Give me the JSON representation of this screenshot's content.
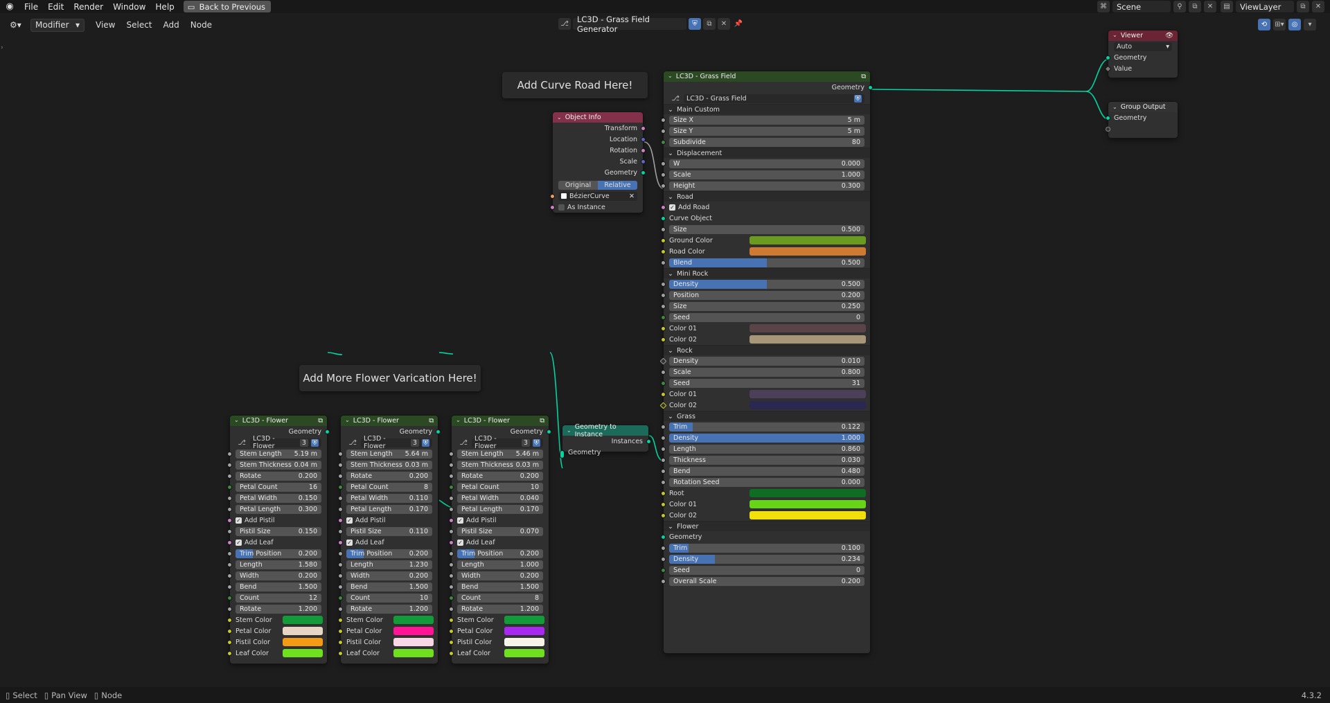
{
  "topbar": {
    "menu": [
      "File",
      "Edit",
      "Render",
      "Window",
      "Help"
    ],
    "back_button": "Back to Previous",
    "scene": "Scene",
    "view_layer": "ViewLayer"
  },
  "header": {
    "editor_mode": "Modifier",
    "menu": [
      "View",
      "Select",
      "Add",
      "Node"
    ],
    "node_group": "LC3D - Grass Field Generator"
  },
  "frames": {
    "curve": "Add Curve Road Here!",
    "flower": "Add More Flower Varication Here!"
  },
  "object_info": {
    "title": "Object Info",
    "outputs": [
      "Transform",
      "Location",
      "Rotation",
      "Scale",
      "Geometry"
    ],
    "mode_original": "Original",
    "mode_relative": "Relative",
    "object": "BézierCurve",
    "as_instance": "As Instance"
  },
  "viewer": {
    "title": "Viewer",
    "domain": "Auto",
    "inputs": [
      "Geometry",
      "Value"
    ]
  },
  "group_output": {
    "title": "Group Output",
    "inputs": [
      "Geometry"
    ]
  },
  "geo_to_instance": {
    "title": "Geometry to Instance",
    "output": "Instances",
    "input": "Geometry"
  },
  "grass_field": {
    "title": "LC3D - Grass Field",
    "output": "Geometry",
    "group": "LC3D - Grass Field",
    "main_custom": {
      "title": "Main Custom",
      "fields": [
        {
          "label": "Size X",
          "value": "5 m"
        },
        {
          "label": "Size Y",
          "value": "5 m"
        },
        {
          "label": "Subdivide",
          "value": "80"
        }
      ]
    },
    "displacement": {
      "title": "Displacement",
      "fields": [
        {
          "label": "W",
          "value": "0.000"
        },
        {
          "label": "Scale",
          "value": "1.000"
        },
        {
          "label": "Height",
          "value": "0.300"
        }
      ]
    },
    "road": {
      "title": "Road",
      "add_road": "Add Road",
      "curve_object": "Curve Object",
      "size_label": "Size",
      "size_value": "0.500",
      "ground_color": "Ground Color",
      "road_color": "Road Color",
      "blend_label": "Blend",
      "blend_value": "0.500"
    },
    "mini_rock": {
      "title": "Mini Rock",
      "fields": [
        {
          "label": "Density",
          "value": "0.500"
        },
        {
          "label": "Position",
          "value": "0.200"
        },
        {
          "label": "Size",
          "value": "0.250"
        },
        {
          "label": "Seed",
          "value": "0"
        }
      ],
      "color01": "Color 01",
      "color02": "Color 02"
    },
    "rock": {
      "title": "Rock",
      "fields": [
        {
          "label": "Density",
          "value": "0.010"
        },
        {
          "label": "Scale",
          "value": "0.800"
        },
        {
          "label": "Seed",
          "value": "31"
        }
      ],
      "color01": "Color 01",
      "color02": "Color 02"
    },
    "grass": {
      "title": "Grass",
      "fields": [
        {
          "label": "Trim",
          "value": "0.122"
        },
        {
          "label": "Density",
          "value": "1.000"
        },
        {
          "label": "Length",
          "value": "0.860"
        },
        {
          "label": "Thickness",
          "value": "0.030"
        },
        {
          "label": "Bend",
          "value": "0.480"
        },
        {
          "label": "Rotation Seed",
          "value": "0.000"
        }
      ],
      "root": "Root",
      "color01": "Color 01",
      "color02": "Color 02"
    },
    "flower": {
      "title": "Flower",
      "geometry": "Geometry",
      "fields": [
        {
          "label": "Trim",
          "value": "0.100"
        },
        {
          "label": "Density",
          "value": "0.234"
        },
        {
          "label": "Seed",
          "value": "0"
        },
        {
          "label": "Overall Scale",
          "value": "0.200"
        }
      ]
    }
  },
  "flowers": [
    {
      "title": "LC3D - Flower",
      "output": "Geometry",
      "group": "LC3D - Flower",
      "users": "3",
      "stem_length": "5.19 m",
      "stem_thickness": "0.04 m",
      "rotate": "0.200",
      "petal_count": "16",
      "petal_width": "0.150",
      "petal_length": "0.300",
      "add_pistil": "Add Pistil",
      "pistil_size": "0.150",
      "add_leaf": "Add Leaf",
      "trim_position": "0.200",
      "length": "1.580",
      "width": "0.200",
      "bend": "1.500",
      "count": "12",
      "rotate2": "1.200"
    },
    {
      "title": "LC3D - Flower",
      "output": "Geometry",
      "group": "LC3D - Flower",
      "users": "3",
      "stem_length": "5.64 m",
      "stem_thickness": "0.03 m",
      "rotate": "0.200",
      "petal_count": "8",
      "petal_width": "0.110",
      "petal_length": "0.170",
      "add_pistil": "Add Pistil",
      "pistil_size": "0.110",
      "add_leaf": "Add Leaf",
      "trim_position": "0.200",
      "length": "1.230",
      "width": "0.200",
      "bend": "1.500",
      "count": "10",
      "rotate2": "1.200"
    },
    {
      "title": "LC3D - Flower",
      "output": "Geometry",
      "group": "LC3D - Flower",
      "users": "3",
      "stem_length": "5.46 m",
      "stem_thickness": "0.03 m",
      "rotate": "0.200",
      "petal_count": "10",
      "petal_width": "0.040",
      "petal_length": "0.170",
      "add_pistil": "Add Pistil",
      "pistil_size": "0.070",
      "add_leaf": "Add Leaf",
      "trim_position": "0.200",
      "length": "1.000",
      "width": "0.200",
      "bend": "1.500",
      "count": "8",
      "rotate2": "1.200"
    }
  ],
  "flower_labels": {
    "stem_length": "Stem Length",
    "stem_thickness": "Stem Thickness",
    "rotate": "Rotate",
    "petal_count": "Petal Count",
    "petal_width": "Petal Width",
    "petal_length": "Petal Length",
    "pistil_size": "Pistil Size",
    "trim_position": "Trim Position",
    "length": "Length",
    "width": "Width",
    "bend": "Bend",
    "count": "Count",
    "stem_color": "Stem Color",
    "petal_color": "Petal Color",
    "pistil_color": "Pistil Color",
    "leaf_color": "Leaf Color"
  },
  "statusbar": {
    "select": "Select",
    "pan": "Pan View",
    "node": "Node",
    "version": "4.3.2"
  }
}
